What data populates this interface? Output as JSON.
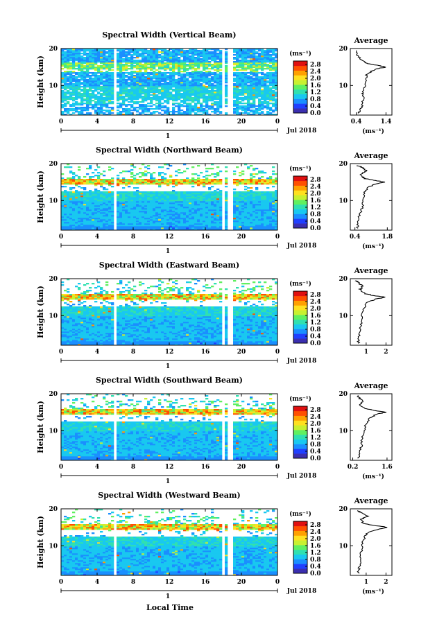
{
  "figure": {
    "xlabel": "Local Time",
    "date_label": "Jul 2018",
    "day_label": "1",
    "unit_label": "(ms⁻¹)",
    "colorbar_ticks": [
      "0.0",
      "0.4",
      "0.8",
      "1.2",
      "1.6",
      "2.0",
      "2.4",
      "2.8"
    ],
    "colormap": [
      "#3b2fb0",
      "#2040ff",
      "#1a8fff",
      "#19c8f0",
      "#30e0b0",
      "#60f060",
      "#c8f030",
      "#ffe020",
      "#ffa000",
      "#ff5000",
      "#e01010"
    ]
  },
  "chart_data": [
    {
      "type": "heatmap",
      "title": "Spectral Width (Vertical Beam)",
      "ylabel": "Height (km)",
      "x_ticks": [
        "0",
        "4",
        "8",
        "12",
        "16",
        "20",
        "0"
      ],
      "y_ticks": [
        "20",
        "10"
      ],
      "xlim": [
        0,
        24
      ],
      "ylim": [
        2,
        20
      ],
      "data_gaps_hours": [
        [
          5.7,
          6.1
        ],
        [
          17.7,
          18.3
        ],
        [
          18.6,
          19.0
        ]
      ],
      "colorbar_range": [
        0.0,
        3.0
      ],
      "profile": {
        "title": "Average",
        "xlabel": "(ms⁻¹)",
        "x_ticks": [
          "0.4",
          "1.4"
        ],
        "xlim": [
          0.2,
          1.6
        ],
        "y_ticks": [
          "20",
          "10"
        ],
        "points": [
          [
            0.45,
            2.5
          ],
          [
            0.55,
            3.5
          ],
          [
            0.6,
            5
          ],
          [
            0.65,
            7
          ],
          [
            0.62,
            8
          ],
          [
            0.7,
            10
          ],
          [
            0.75,
            12
          ],
          [
            0.75,
            13
          ],
          [
            0.95,
            14
          ],
          [
            1.15,
            14.6
          ],
          [
            1.4,
            15
          ],
          [
            1.1,
            15.5
          ],
          [
            0.75,
            16
          ],
          [
            0.55,
            17
          ],
          [
            0.45,
            18
          ],
          [
            0.4,
            19.5
          ]
        ]
      }
    },
    {
      "type": "heatmap",
      "title": "Spectral Width (Northward Beam)",
      "ylabel": "Height (km)",
      "x_ticks": [
        "0",
        "4",
        "8",
        "12",
        "16",
        "20",
        "0"
      ],
      "y_ticks": [
        "20",
        "10"
      ],
      "xlim": [
        0,
        24
      ],
      "ylim": [
        2,
        20
      ],
      "data_gaps_hours": [
        [
          5.7,
          6.1
        ],
        [
          17.7,
          18.3
        ],
        [
          18.6,
          19.0
        ]
      ],
      "colorbar_range": [
        0.0,
        3.0
      ],
      "profile": {
        "title": "Average",
        "xlabel": "(ms⁻¹)",
        "x_ticks": [
          "0.4",
          "1.8"
        ],
        "xlim": [
          0.2,
          2.0
        ],
        "y_ticks": [
          "20",
          "10"
        ],
        "points": [
          [
            0.5,
            2.5
          ],
          [
            0.55,
            4
          ],
          [
            0.6,
            6
          ],
          [
            0.7,
            8
          ],
          [
            0.75,
            10
          ],
          [
            0.8,
            12
          ],
          [
            0.95,
            13.5
          ],
          [
            1.3,
            14.5
          ],
          [
            1.7,
            15
          ],
          [
            1.2,
            15.5
          ],
          [
            0.8,
            16
          ],
          [
            0.6,
            17
          ],
          [
            0.9,
            18
          ],
          [
            0.7,
            19
          ],
          [
            0.5,
            19.5
          ]
        ]
      }
    },
    {
      "type": "heatmap",
      "title": "Spectral Width (Eastward Beam)",
      "ylabel": "Height (km)",
      "x_ticks": [
        "0",
        "4",
        "8",
        "12",
        "16",
        "20",
        "0"
      ],
      "y_ticks": [
        "20",
        "10"
      ],
      "xlim": [
        0,
        24
      ],
      "ylim": [
        2,
        20
      ],
      "data_gaps_hours": [
        [
          5.7,
          6.1
        ],
        [
          17.7,
          18.3
        ],
        [
          18.6,
          19.0
        ]
      ],
      "colorbar_range": [
        0.0,
        3.0
      ],
      "profile": {
        "title": "Average",
        "xlabel": "",
        "x_ticks": [
          "1",
          "2"
        ],
        "xlim": [
          0.2,
          2.3
        ],
        "y_ticks": [
          "20",
          "10"
        ],
        "points": [
          [
            0.6,
            2.5
          ],
          [
            0.65,
            4
          ],
          [
            0.7,
            6
          ],
          [
            0.75,
            8
          ],
          [
            0.8,
            10
          ],
          [
            0.9,
            12
          ],
          [
            1.0,
            13.5
          ],
          [
            1.5,
            14.5
          ],
          [
            2.0,
            15
          ],
          [
            1.3,
            15.5
          ],
          [
            0.9,
            16
          ],
          [
            0.7,
            17
          ],
          [
            0.8,
            18
          ],
          [
            0.6,
            19
          ],
          [
            0.5,
            19.5
          ]
        ]
      }
    },
    {
      "type": "heatmap",
      "title": "Spectral Width (Southward Beam)",
      "ylabel": "Height (km)",
      "x_ticks": [
        "0",
        "4",
        "8",
        "12",
        "16",
        "20",
        "0"
      ],
      "y_ticks": [
        "20",
        "10"
      ],
      "xlim": [
        0,
        24
      ],
      "ylim": [
        2,
        20
      ],
      "data_gaps_hours": [
        [
          5.7,
          6.1
        ],
        [
          17.7,
          18.3
        ],
        [
          18.6,
          19.0
        ]
      ],
      "colorbar_range": [
        0.0,
        3.0
      ],
      "profile": {
        "title": "Average",
        "xlabel": "(ms⁻¹)",
        "x_ticks": [
          "0.2",
          "1.6"
        ],
        "xlim": [
          0.1,
          1.8
        ],
        "y_ticks": [
          "20",
          "10"
        ],
        "points": [
          [
            0.45,
            2.5
          ],
          [
            0.5,
            4
          ],
          [
            0.55,
            6
          ],
          [
            0.6,
            8
          ],
          [
            0.65,
            10
          ],
          [
            0.75,
            12
          ],
          [
            0.9,
            13.5
          ],
          [
            1.2,
            14.5
          ],
          [
            1.55,
            15
          ],
          [
            1.1,
            15.5
          ],
          [
            0.7,
            16
          ],
          [
            0.5,
            17
          ],
          [
            0.6,
            18
          ],
          [
            0.45,
            19
          ],
          [
            0.4,
            19.5
          ]
        ]
      }
    },
    {
      "type": "heatmap",
      "title": "Spectral Width (Westward Beam)",
      "ylabel": "Height (km)",
      "x_ticks": [
        "0",
        "4",
        "8",
        "12",
        "16",
        "20",
        "0"
      ],
      "y_ticks": [
        "20",
        "10"
      ],
      "xlim": [
        0,
        24
      ],
      "ylim": [
        2,
        20
      ],
      "data_gaps_hours": [
        [
          5.7,
          6.1
        ],
        [
          17.7,
          18.3
        ],
        [
          18.6,
          19.0
        ]
      ],
      "colorbar_range": [
        0.0,
        3.0
      ],
      "profile": {
        "title": "Average",
        "xlabel": "(ms⁻¹)",
        "x_ticks": [
          "1",
          "2"
        ],
        "xlim": [
          0.2,
          2.3
        ],
        "y_ticks": [
          "20",
          "10"
        ],
        "points": [
          [
            0.6,
            2.5
          ],
          [
            0.65,
            4
          ],
          [
            0.7,
            6
          ],
          [
            0.75,
            8
          ],
          [
            0.8,
            10
          ],
          [
            0.9,
            12
          ],
          [
            1.05,
            13.5
          ],
          [
            1.6,
            14.5
          ],
          [
            2.1,
            15
          ],
          [
            1.4,
            15.5
          ],
          [
            0.9,
            16
          ],
          [
            0.7,
            17
          ],
          [
            1.1,
            18
          ],
          [
            0.7,
            19
          ],
          [
            0.55,
            19.5
          ]
        ]
      }
    }
  ]
}
